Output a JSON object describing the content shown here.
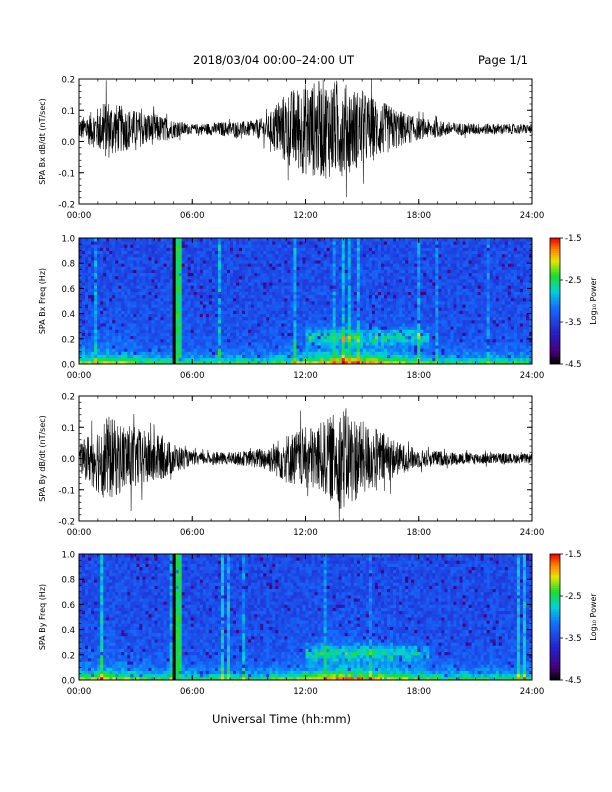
{
  "header": {
    "date_range": "2018/03/04  00:00–24:00 UT",
    "page": "Page 1/1"
  },
  "x_axis_label": "Universal Time (hh:mm)",
  "chart_data": [
    {
      "type": "line",
      "ylabel": "SPA Bx dB/dt (nT/sec)",
      "xlim": [
        0,
        24
      ],
      "ylim": [
        -0.2,
        0.2
      ],
      "x_ticks": [
        "00:00",
        "06:00",
        "12:00",
        "18:00",
        "24:00"
      ],
      "y_ticks": [
        "-0.2",
        "-0.1",
        "0.0",
        "0.1",
        "0.2"
      ],
      "y_tick_values": [
        -0.2,
        -0.1,
        0.0,
        0.1,
        0.2
      ],
      "baseline": 0.04,
      "envelope": [
        {
          "t": 0.0,
          "amp": 0.03
        },
        {
          "t": 0.5,
          "amp": 0.05
        },
        {
          "t": 1.0,
          "amp": 0.07
        },
        {
          "t": 1.5,
          "amp": 0.1
        },
        {
          "t": 2.0,
          "amp": 0.08
        },
        {
          "t": 3.0,
          "amp": 0.06
        },
        {
          "t": 4.0,
          "amp": 0.05
        },
        {
          "t": 5.0,
          "amp": 0.03
        },
        {
          "t": 6.0,
          "amp": 0.015
        },
        {
          "t": 7.0,
          "amp": 0.02
        },
        {
          "t": 8.0,
          "amp": 0.025
        },
        {
          "t": 9.0,
          "amp": 0.025
        },
        {
          "t": 10.0,
          "amp": 0.04
        },
        {
          "t": 10.5,
          "amp": 0.09
        },
        {
          "t": 11.0,
          "amp": 0.12
        },
        {
          "t": 12.0,
          "amp": 0.15
        },
        {
          "t": 13.0,
          "amp": 0.16
        },
        {
          "t": 14.0,
          "amp": 0.15
        },
        {
          "t": 15.0,
          "amp": 0.12
        },
        {
          "t": 16.0,
          "amp": 0.09
        },
        {
          "t": 17.0,
          "amp": 0.06
        },
        {
          "t": 18.0,
          "amp": 0.035
        },
        {
          "t": 20.0,
          "amp": 0.02
        },
        {
          "t": 24.0,
          "amp": 0.015
        }
      ]
    },
    {
      "type": "heatmap",
      "ylabel": "SPA Bx Freq (Hz)",
      "xlim": [
        0,
        24
      ],
      "ylim": [
        0.0,
        1.0
      ],
      "x_ticks": [
        "00:00",
        "06:00",
        "12:00",
        "18:00",
        "24:00"
      ],
      "y_ticks": [
        "0.0",
        "0.2",
        "0.4",
        "0.6",
        "0.8",
        "1.0"
      ],
      "y_tick_values": [
        0.0,
        0.2,
        0.4,
        0.6,
        0.8,
        1.0
      ],
      "colorbar": {
        "label": "Log₁₀ Power",
        "ticks": [
          "-1.5",
          "-2.5",
          "-3.5",
          "-4.5"
        ],
        "tick_values": [
          -1.5,
          -2.5,
          -3.5,
          -4.5
        ],
        "range": [
          -4.5,
          -1.5
        ]
      },
      "gap_hours": [
        5.0,
        5.5
      ]
    },
    {
      "type": "line",
      "ylabel": "SPA By dB/dt (nT/sec)",
      "xlim": [
        0,
        24
      ],
      "ylim": [
        -0.2,
        0.2
      ],
      "x_ticks": [
        "00:00",
        "06:00",
        "12:00",
        "18:00",
        "24:00"
      ],
      "y_ticks": [
        "-0.2",
        "-0.1",
        "0.0",
        "0.1",
        "0.2"
      ],
      "y_tick_values": [
        -0.2,
        -0.1,
        0.0,
        0.1,
        0.2
      ],
      "baseline": 0.0,
      "envelope": [
        {
          "t": 0.0,
          "amp": 0.04
        },
        {
          "t": 0.5,
          "amp": 0.08
        },
        {
          "t": 1.0,
          "amp": 0.11
        },
        {
          "t": 1.5,
          "amp": 0.14
        },
        {
          "t": 2.0,
          "amp": 0.12
        },
        {
          "t": 3.0,
          "amp": 0.1
        },
        {
          "t": 4.0,
          "amp": 0.08
        },
        {
          "t": 5.0,
          "amp": 0.05
        },
        {
          "t": 6.0,
          "amp": 0.02
        },
        {
          "t": 8.0,
          "amp": 0.02
        },
        {
          "t": 9.0,
          "amp": 0.025
        },
        {
          "t": 10.0,
          "amp": 0.04
        },
        {
          "t": 11.0,
          "amp": 0.08
        },
        {
          "t": 12.0,
          "amp": 0.1
        },
        {
          "t": 13.0,
          "amp": 0.12
        },
        {
          "t": 14.0,
          "amp": 0.17
        },
        {
          "t": 15.0,
          "amp": 0.12
        },
        {
          "t": 16.0,
          "amp": 0.09
        },
        {
          "t": 17.0,
          "amp": 0.05
        },
        {
          "t": 18.0,
          "amp": 0.03
        },
        {
          "t": 20.0,
          "amp": 0.02
        },
        {
          "t": 24.0,
          "amp": 0.015
        }
      ]
    },
    {
      "type": "heatmap",
      "ylabel": "SPA By Freq (Hz)",
      "xlim": [
        0,
        24
      ],
      "ylim": [
        0.0,
        1.0
      ],
      "x_ticks": [
        "00:00",
        "06:00",
        "12:00",
        "18:00",
        "24:00"
      ],
      "y_ticks": [
        "0.0",
        "0.2",
        "0.4",
        "0.6",
        "0.8",
        "1.0"
      ],
      "y_tick_values": [
        0.0,
        0.2,
        0.4,
        0.6,
        0.8,
        1.0
      ],
      "colorbar": {
        "label": "Log₁₀ Power",
        "ticks": [
          "-1.5",
          "-2.5",
          "-3.5",
          "-4.5"
        ],
        "tick_values": [
          -1.5,
          -2.5,
          -3.5,
          -4.5
        ],
        "range": [
          -4.5,
          -1.5
        ]
      },
      "gap_hours": [
        5.0,
        5.5
      ]
    }
  ]
}
